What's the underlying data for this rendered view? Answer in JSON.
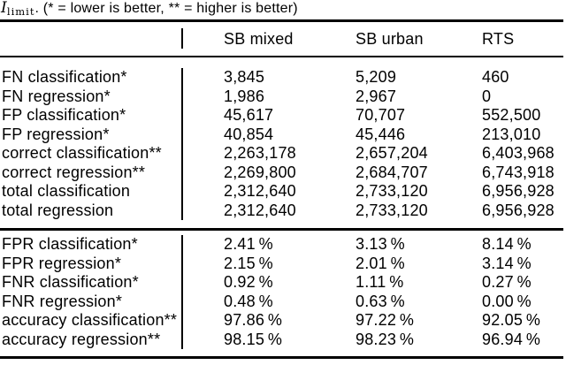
{
  "caption": {
    "math_symbol": "I",
    "math_subscript": "limit",
    "text": ". (* = lower is better, ** = higher is better)"
  },
  "table": {
    "columns": [
      "SB mixed",
      "SB urban",
      "RTS"
    ],
    "sections": [
      {
        "rows": [
          {
            "label": "FN classification*",
            "values": [
              "3,845",
              "5,209",
              "460"
            ]
          },
          {
            "label": "FN regression*",
            "values": [
              "1,986",
              "2,967",
              "0"
            ]
          },
          {
            "label": "FP classification*",
            "values": [
              "45,617",
              "70,707",
              "552,500"
            ]
          },
          {
            "label": "FP regression*",
            "values": [
              "40,854",
              "45,446",
              "213,010"
            ]
          },
          {
            "label": "correct classification**",
            "values": [
              "2,263,178",
              "2,657,204",
              "6,403,968"
            ]
          },
          {
            "label": "correct regression**",
            "values": [
              "2,269,800",
              "2,684,707",
              "6,743,918"
            ]
          },
          {
            "label": "total classification",
            "values": [
              "2,312,640",
              "2,733,120",
              "6,956,928"
            ]
          },
          {
            "label": "total regression",
            "values": [
              "2,312,640",
              "2,733,120",
              "6,956,928"
            ]
          }
        ]
      },
      {
        "rows": [
          {
            "label": "FPR classification*",
            "values": [
              "2.41 %",
              "3.13 %",
              "8.14 %"
            ]
          },
          {
            "label": "FPR regression*",
            "values": [
              "2.15 %",
              "2.01 %",
              "3.14 %"
            ]
          },
          {
            "label": "FNR classification*",
            "values": [
              "0.92 %",
              "1.11 %",
              "0.27 %"
            ]
          },
          {
            "label": "FNR regression*",
            "values": [
              "0.48 %",
              "0.63 %",
              "0.00 %"
            ]
          },
          {
            "label": "accuracy classification**",
            "values": [
              "97.86 %",
              "97.22 %",
              "92.05 %"
            ]
          },
          {
            "label": "accuracy regression**",
            "values": [
              "98.15 %",
              "98.23 %",
              "96.94 %"
            ]
          }
        ]
      }
    ]
  },
  "colors": {
    "text": "#000000",
    "background": "#ffffff",
    "rule": "#000000"
  }
}
